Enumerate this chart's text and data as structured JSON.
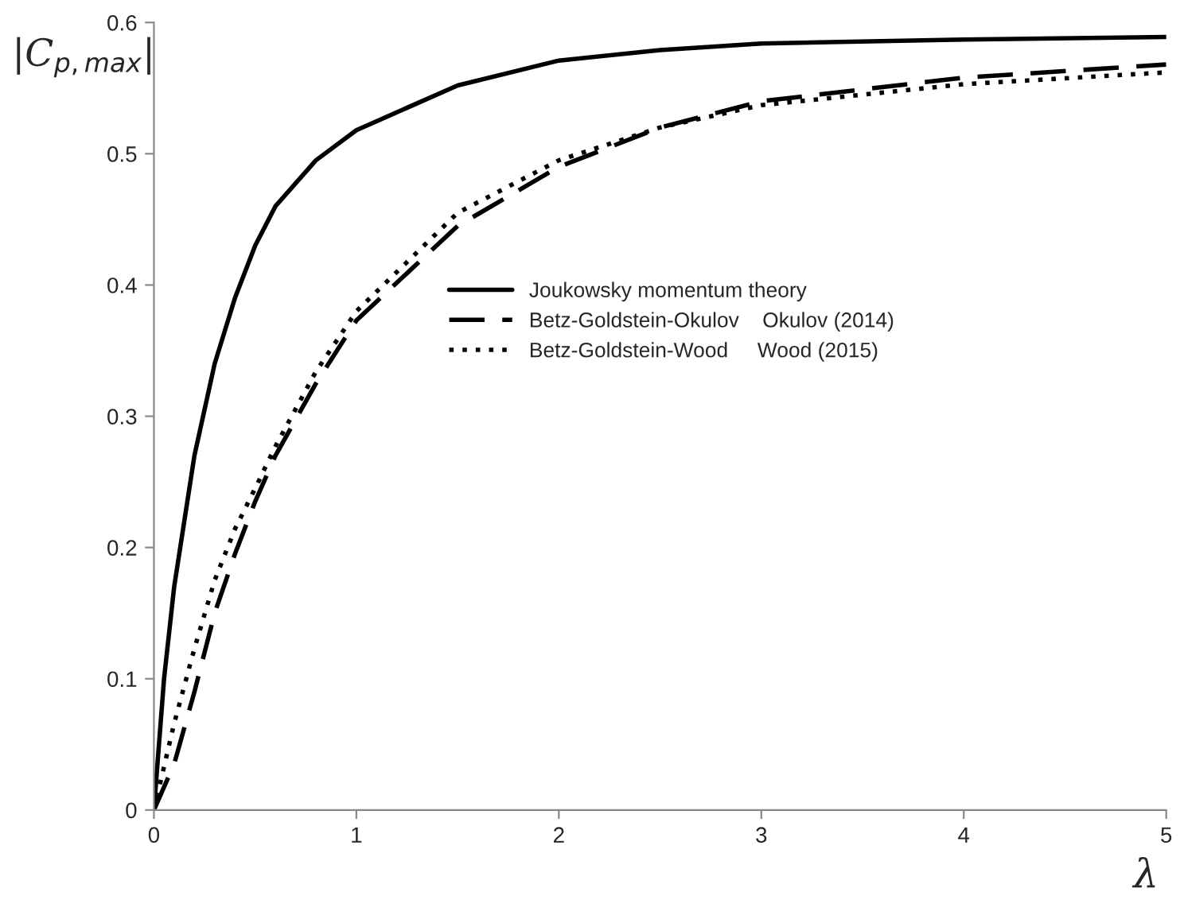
{
  "chart_data": {
    "type": "line",
    "xlabel": "λ",
    "ylabel": "|C$_{p,max}$|",
    "xlim": [
      0,
      5
    ],
    "xticks": [
      0,
      1,
      2,
      3,
      4,
      5
    ],
    "ylim": [
      0,
      0.6
    ],
    "yticks": [
      0,
      0.1,
      0.2,
      0.3,
      0.4,
      0.5,
      0.6
    ],
    "grid": false,
    "legend": "right",
    "marker": "none",
    "series": [
      {
        "name": "Joukowsky momentum theory",
        "color": "#000000",
        "line_style": "solid",
        "x": [
          0,
          0.05,
          0.1,
          0.2,
          0.3,
          0.4,
          0.5,
          0.6,
          0.8,
          1.0,
          1.5,
          2,
          2.5,
          3,
          4,
          5
        ],
        "values": [
          0,
          0.1,
          0.17,
          0.27,
          0.34,
          0.39,
          0.43,
          0.46,
          0.495,
          0.518,
          0.552,
          0.571,
          0.579,
          0.584,
          0.587,
          0.589
        ]
      },
      {
        "name": "Betz-Goldstein-Okulov    Okulov (2014)",
        "color": "#000000",
        "line_style": "dashed",
        "x": [
          0,
          0.1,
          0.2,
          0.3,
          0.4,
          0.5,
          0.6,
          0.8,
          1.0,
          1.5,
          2,
          2.5,
          3,
          4,
          5
        ],
        "values": [
          0,
          0.035,
          0.09,
          0.15,
          0.195,
          0.235,
          0.27,
          0.325,
          0.373,
          0.445,
          0.49,
          0.52,
          0.54,
          0.558,
          0.568
        ]
      },
      {
        "name": "Betz-Goldstein-Wood     Wood (2015)",
        "color": "#000000",
        "line_style": "dotted",
        "x": [
          0,
          0.1,
          0.2,
          0.3,
          0.4,
          0.5,
          0.6,
          0.8,
          1.0,
          1.5,
          2,
          2.5,
          3,
          4,
          5
        ],
        "values": [
          0,
          0.066,
          0.123,
          0.175,
          0.214,
          0.245,
          0.277,
          0.334,
          0.38,
          0.455,
          0.495,
          0.52,
          0.537,
          0.553,
          0.562
        ]
      }
    ]
  }
}
